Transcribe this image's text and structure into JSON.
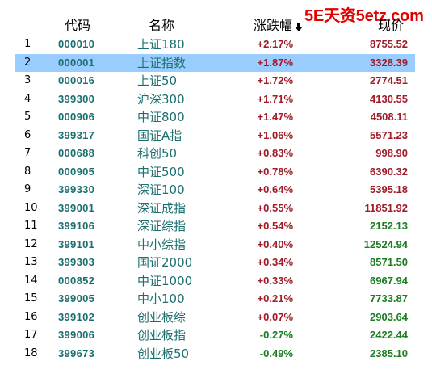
{
  "watermark": "5E天资5etz.com",
  "header": {
    "code": "代码",
    "name": "名称",
    "change": "涨跌幅",
    "price": "现价",
    "sort_icon": "arrow-down-icon"
  },
  "colors": {
    "up": "#a01c28",
    "down": "#1b7d20",
    "code_text": "#1d6f6f",
    "selected_bg": "#99ccff",
    "watermark": "#e40000"
  },
  "selected_index": 1,
  "rows": [
    {
      "idx": "1",
      "code": "000010",
      "name": "上证180",
      "change": "+2.17%",
      "change_dir": "up",
      "price": "8755.52",
      "price_dir": "up"
    },
    {
      "idx": "2",
      "code": "000001",
      "name": "上证指数",
      "change": "+1.87%",
      "change_dir": "up",
      "price": "3328.39",
      "price_dir": "up"
    },
    {
      "idx": "3",
      "code": "000016",
      "name": "上证50",
      "change": "+1.72%",
      "change_dir": "up",
      "price": "2774.51",
      "price_dir": "up"
    },
    {
      "idx": "4",
      "code": "399300",
      "name": "沪深300",
      "change": "+1.71%",
      "change_dir": "up",
      "price": "4130.55",
      "price_dir": "up"
    },
    {
      "idx": "5",
      "code": "000906",
      "name": "中证800",
      "change": "+1.47%",
      "change_dir": "up",
      "price": "4508.11",
      "price_dir": "up"
    },
    {
      "idx": "6",
      "code": "399317",
      "name": "国证A指",
      "change": "+1.06%",
      "change_dir": "up",
      "price": "5571.23",
      "price_dir": "up"
    },
    {
      "idx": "7",
      "code": "000688",
      "name": "科创50",
      "change": "+0.83%",
      "change_dir": "up",
      "price": "998.90",
      "price_dir": "up"
    },
    {
      "idx": "8",
      "code": "000905",
      "name": "中证500",
      "change": "+0.78%",
      "change_dir": "up",
      "price": "6390.32",
      "price_dir": "up"
    },
    {
      "idx": "9",
      "code": "399330",
      "name": "深证100",
      "change": "+0.64%",
      "change_dir": "up",
      "price": "5395.18",
      "price_dir": "up"
    },
    {
      "idx": "10",
      "code": "399001",
      "name": "深证成指",
      "change": "+0.55%",
      "change_dir": "up",
      "price": "11851.92",
      "price_dir": "up"
    },
    {
      "idx": "11",
      "code": "399106",
      "name": "深证综指",
      "change": "+0.54%",
      "change_dir": "up",
      "price": "2152.13",
      "price_dir": "down"
    },
    {
      "idx": "12",
      "code": "399101",
      "name": "中小综指",
      "change": "+0.40%",
      "change_dir": "up",
      "price": "12524.94",
      "price_dir": "down"
    },
    {
      "idx": "13",
      "code": "399303",
      "name": "国证2000",
      "change": "+0.34%",
      "change_dir": "up",
      "price": "8571.50",
      "price_dir": "down"
    },
    {
      "idx": "14",
      "code": "000852",
      "name": "中证1000",
      "change": "+0.33%",
      "change_dir": "up",
      "price": "6967.94",
      "price_dir": "down"
    },
    {
      "idx": "15",
      "code": "399005",
      "name": "中小100",
      "change": "+0.21%",
      "change_dir": "up",
      "price": "7733.87",
      "price_dir": "down"
    },
    {
      "idx": "16",
      "code": "399102",
      "name": "创业板综",
      "change": "+0.07%",
      "change_dir": "up",
      "price": "2903.64",
      "price_dir": "down"
    },
    {
      "idx": "17",
      "code": "399006",
      "name": "创业板指",
      "change": "-0.27%",
      "change_dir": "down",
      "price": "2422.44",
      "price_dir": "down"
    },
    {
      "idx": "18",
      "code": "399673",
      "name": "创业板50",
      "change": "-0.49%",
      "change_dir": "down",
      "price": "2385.10",
      "price_dir": "down"
    }
  ]
}
